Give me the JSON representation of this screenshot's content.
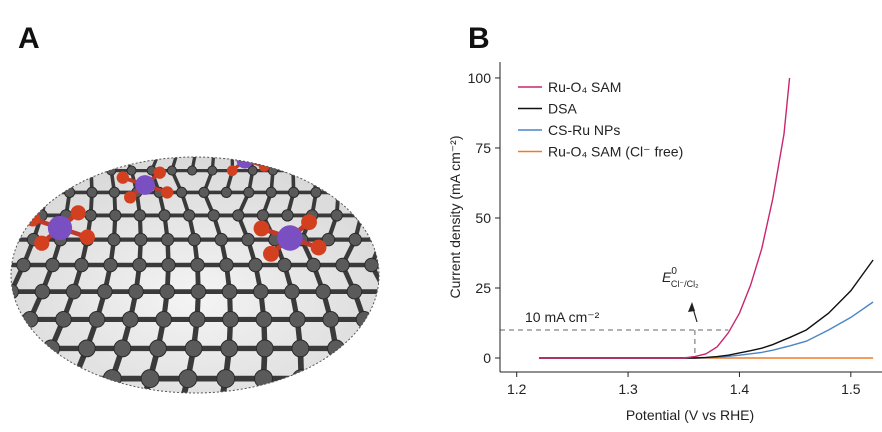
{
  "panels": [
    "A",
    "B"
  ],
  "chart_data": {
    "type": "line",
    "x_label": "Potential (V vs RHE)",
    "y_label": "Current density (mA cm⁻²)",
    "x": [
      1.22,
      1.3,
      1.35,
      1.36,
      1.37,
      1.38,
      1.39,
      1.4,
      1.41,
      1.42,
      1.43,
      1.44,
      1.445,
      1.46,
      1.48,
      1.5,
      1.52
    ],
    "series": [
      {
        "name": "Ru-O₄ SAM",
        "color": "#c8266e",
        "values": [
          0,
          0,
          0,
          0.5,
          1.5,
          4,
          9,
          16,
          26,
          39,
          57,
          80,
          100,
          null,
          null,
          null,
          null
        ]
      },
      {
        "name": "DSA",
        "color": "#111111",
        "values": [
          0,
          0,
          0,
          0,
          0.2,
          0.5,
          1,
          1.8,
          2.6,
          3.5,
          4.8,
          6.5,
          7.3,
          10,
          16,
          24,
          35
        ]
      },
      {
        "name": "CS-Ru NPs",
        "color": "#4a86c5",
        "values": [
          0,
          0,
          0,
          0,
          0.1,
          0.3,
          0.6,
          1,
          1.5,
          2,
          2.8,
          3.8,
          4.3,
          6,
          10,
          14.5,
          20
        ]
      },
      {
        "name": "Ru-O₄ SAM (Cl⁻ free)",
        "color": "#f07a2a",
        "values": [
          0,
          0,
          0,
          0,
          0,
          0,
          0,
          0,
          0,
          0,
          0,
          0,
          0,
          0,
          0,
          0,
          0
        ]
      }
    ],
    "xlim": [
      1.185,
      1.528
    ],
    "ylim": [
      -5,
      105.7
    ],
    "xticks": [
      1.2,
      1.3,
      1.4,
      1.5
    ],
    "yticks": [
      0,
      25,
      50,
      75,
      100
    ],
    "legend": "upper left",
    "threshold": {
      "y": 10,
      "x": 1.36,
      "label": "10 mA cm⁻²"
    },
    "potential_label": {
      "symbol": "E",
      "sup": "0",
      "sub": "Cl⁻/Cl₂"
    }
  }
}
